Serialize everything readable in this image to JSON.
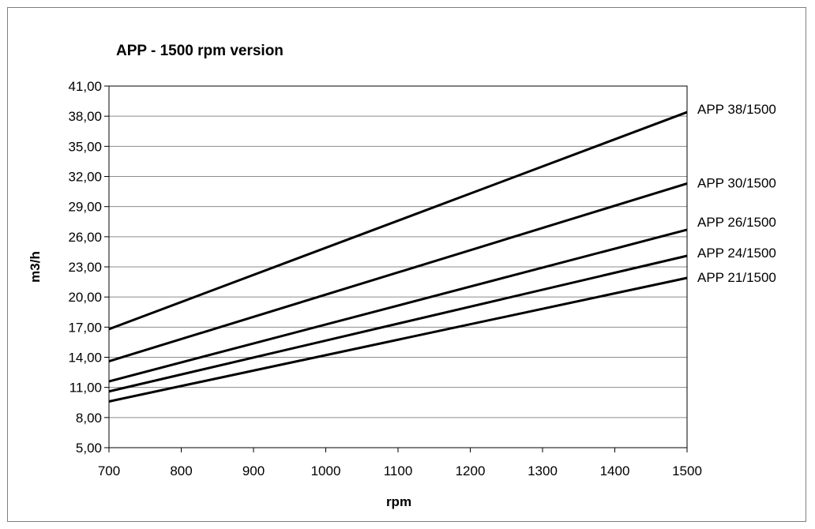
{
  "chart_data": {
    "type": "line",
    "title": "APP - 1500 rpm version",
    "xlabel": "rpm",
    "ylabel": "m3/h",
    "xlim": [
      700,
      1500
    ],
    "ylim": [
      5,
      41
    ],
    "x_ticks": [
      "700",
      "800",
      "900",
      "1000",
      "1100",
      "1200",
      "1300",
      "1400",
      "1500"
    ],
    "y_ticks": [
      "5,00",
      "8,00",
      "11,00",
      "14,00",
      "17,00",
      "20,00",
      "23,00",
      "26,00",
      "29,00",
      "32,00",
      "35,00",
      "38,00",
      "41,00"
    ],
    "grid": "horizontal",
    "legend": "labels at right end of lines",
    "series": [
      {
        "name": "APP 38/1500",
        "x": [
          700,
          1500
        ],
        "y": [
          16.8,
          38.4
        ]
      },
      {
        "name": "APP 30/1500",
        "x": [
          700,
          1500
        ],
        "y": [
          13.6,
          31.3
        ]
      },
      {
        "name": "APP 26/1500",
        "x": [
          700,
          1500
        ],
        "y": [
          11.6,
          26.7
        ]
      },
      {
        "name": "APP 24/1500",
        "x": [
          700,
          1500
        ],
        "y": [
          10.6,
          24.1
        ]
      },
      {
        "name": "APP 21/1500",
        "x": [
          700,
          1500
        ],
        "y": [
          9.6,
          21.9
        ]
      }
    ]
  }
}
